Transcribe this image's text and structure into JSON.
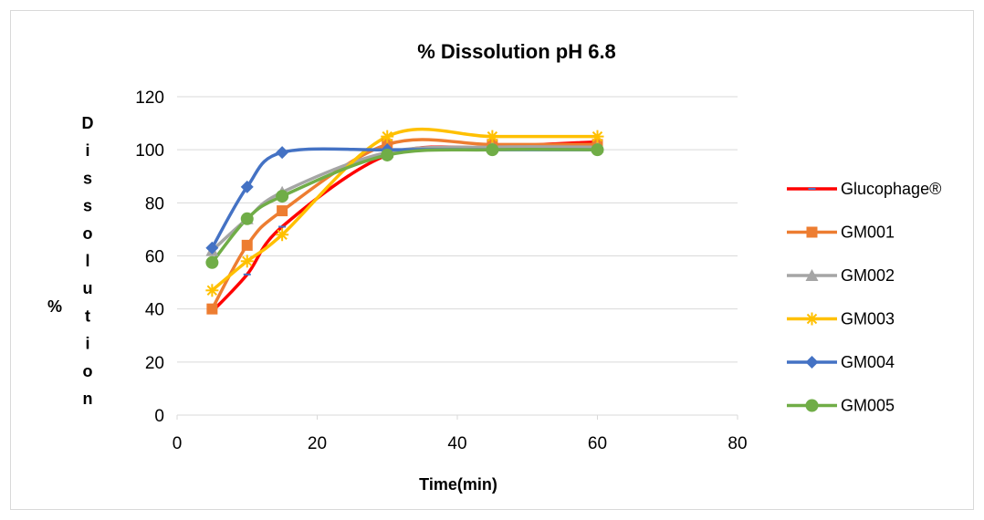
{
  "chart_data": {
    "type": "line",
    "title": "% Dissolution pH 6.8",
    "xlabel": "Time(min)",
    "ylabel": "% Dissolution",
    "ylabel_prefix": "%",
    "ylabel_word": "Dissolution",
    "xlim": [
      0,
      80
    ],
    "ylim": [
      0,
      120
    ],
    "x_ticks": [
      0,
      20,
      40,
      60,
      80
    ],
    "y_ticks": [
      0,
      20,
      40,
      60,
      80,
      100,
      120
    ],
    "grid": "horizontal",
    "legend_position": "right",
    "smooth": true,
    "series": [
      {
        "name": "Glucophage®",
        "color": "#ff0000",
        "marker": "dash",
        "x": [
          5,
          10,
          15,
          30,
          45,
          60
        ],
        "y": [
          39,
          53,
          71,
          98,
          101,
          103
        ]
      },
      {
        "name": "GM001",
        "color": "#ed7d31",
        "marker": "square",
        "x": [
          5,
          10,
          15,
          30,
          45,
          60
        ],
        "y": [
          40,
          64,
          77,
          102,
          102,
          102
        ]
      },
      {
        "name": "GM002",
        "color": "#a5a5a5",
        "marker": "triangle",
        "x": [
          5,
          10,
          15,
          30,
          45,
          60
        ],
        "y": [
          62,
          74,
          84,
          99,
          101,
          101
        ]
      },
      {
        "name": "GM003",
        "color": "#ffc000",
        "marker": "star",
        "x": [
          5,
          10,
          15,
          30,
          45,
          60
        ],
        "y": [
          47,
          58,
          68,
          105,
          105,
          105
        ]
      },
      {
        "name": "GM004",
        "color": "#4472c4",
        "marker": "diamond",
        "x": [
          5,
          10,
          15,
          30,
          45,
          60
        ],
        "y": [
          63,
          86,
          99,
          100,
          100,
          100
        ]
      },
      {
        "name": "GM005",
        "color": "#70ad47",
        "marker": "circle",
        "x": [
          5,
          10,
          15,
          30,
          45,
          60
        ],
        "y": [
          57.5,
          74,
          82.5,
          98,
          100,
          100
        ]
      }
    ]
  }
}
